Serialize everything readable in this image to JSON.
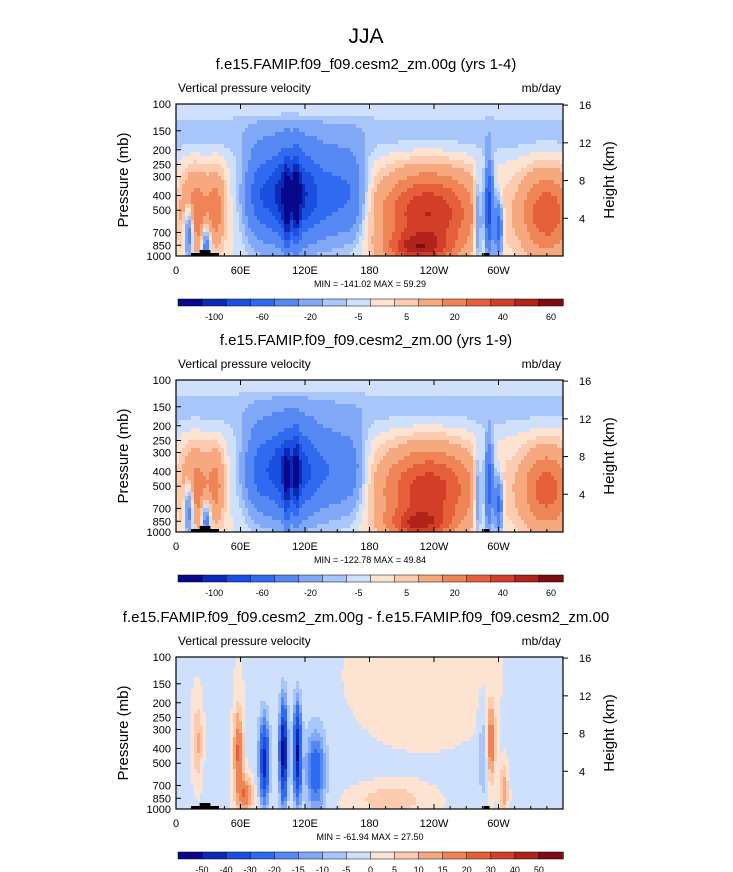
{
  "chart_data": {
    "type": "heatmap",
    "title": "JJA",
    "field_label": "Vertical pressure velocity",
    "units": "mb/day",
    "ylabel": "Pressure (mb)",
    "ylabel_right": "Height (km)",
    "xlim": [
      0,
      360
    ],
    "ylim_mb": [
      1000,
      100
    ],
    "x_ticks": [
      "0",
      "60E",
      "120E",
      "180",
      "120W",
      "60W"
    ],
    "x_tick_values": [
      0,
      60,
      120,
      180,
      240,
      300
    ],
    "p_ticks": [
      "100",
      "150",
      "200",
      "250",
      "300",
      "400",
      "500",
      "700",
      "850",
      "1000"
    ],
    "p_tick_values": [
      100,
      150,
      200,
      250,
      300,
      400,
      500,
      700,
      850,
      1000
    ],
    "h_ticks": [
      "4",
      "8",
      "12",
      "16"
    ],
    "h_tick_values": [
      4,
      8,
      12,
      16
    ],
    "palette": [
      "#08088c",
      "#0c2ab8",
      "#1a4fe0",
      "#2f6af0",
      "#5588f2",
      "#80a8f6",
      "#a9c6fa",
      "#cfe0fc",
      "#fde4d2",
      "#fccbb0",
      "#f6a87f",
      "#ef8456",
      "#e5603a",
      "#d23e28",
      "#b0231b",
      "#7e0c10"
    ],
    "panels": [
      {
        "title": "f.e15.FAMIP.f09_f09.cesm2_zm.00g (yrs 1-4)",
        "stats": "MIN = -141.02  MAX =  59.29",
        "min": -141.02,
        "max": 59.29,
        "colorbar_labels": [
          "-100",
          "-60",
          "-20",
          "-5",
          "5",
          "20",
          "40",
          "60"
        ],
        "variant": "mean"
      },
      {
        "title": "f.e15.FAMIP.f09_f09.cesm2_zm.00 (yrs 1-9)",
        "stats": "MIN = -122.78  MAX =  49.84",
        "min": -122.78,
        "max": 49.84,
        "colorbar_labels": [
          "-100",
          "-60",
          "-20",
          "-5",
          "5",
          "20",
          "40",
          "60"
        ],
        "variant": "mean2"
      },
      {
        "title": "f.e15.FAMIP.f09_f09.cesm2_zm.00g - f.e15.FAMIP.f09_f09.cesm2_zm.00",
        "stats": "MIN = -61.94  MAX =  27.50",
        "min": -61.94,
        "max": 27.5,
        "colorbar_labels": [
          "-50",
          "-40",
          "-30",
          "-20",
          "-15",
          "-10",
          "-5",
          "0",
          "5",
          "10",
          "15",
          "20",
          "30",
          "40",
          "50"
        ],
        "variant": "diff"
      }
    ]
  }
}
